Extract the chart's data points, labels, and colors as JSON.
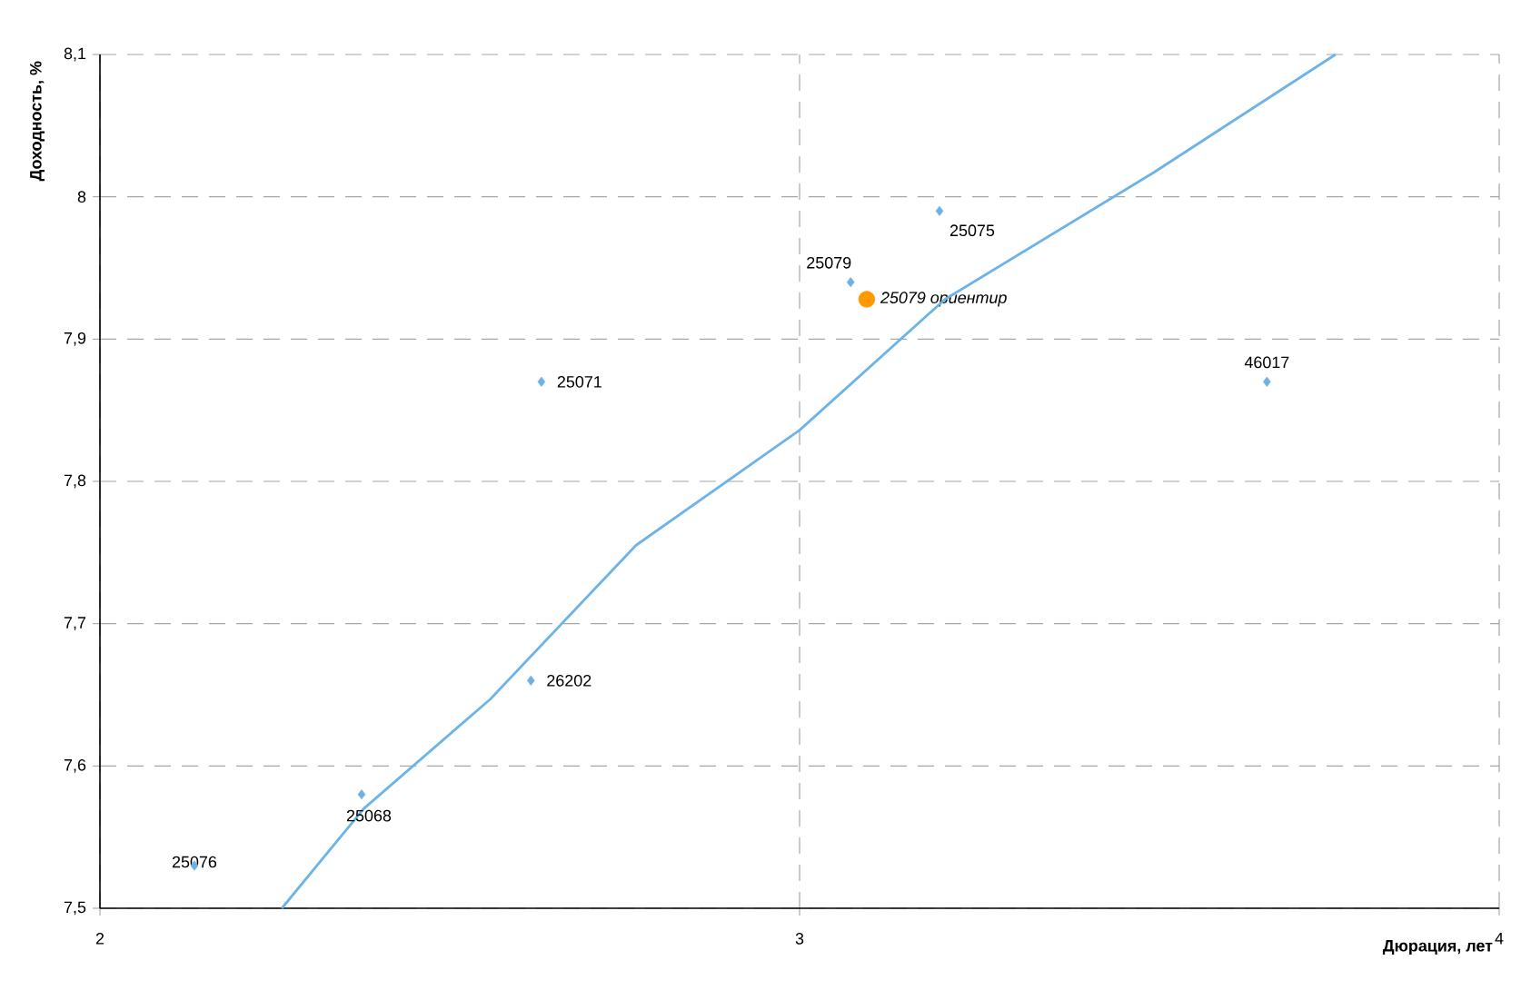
{
  "chart_data": {
    "type": "scatter",
    "xlabel": "Дюрация, лет",
    "ylabel": "Доходность, %",
    "xlim": [
      2,
      4
    ],
    "ylim": [
      7.5,
      8.1
    ],
    "xticks": [
      2,
      3,
      4
    ],
    "yticks": [
      {
        "value": 7.5,
        "label": "7,5"
      },
      {
        "value": 7.6,
        "label": "7,6"
      },
      {
        "value": 7.7,
        "label": "7,7"
      },
      {
        "value": 7.8,
        "label": "7,8"
      },
      {
        "value": 7.9,
        "label": "7,9"
      },
      {
        "value": 8.0,
        "label": "8"
      },
      {
        "value": 8.1,
        "label": "8,1"
      }
    ],
    "grid": true,
    "series": [
      {
        "marker": "diamond",
        "color": "#6fb1e4",
        "x": [
          2.135,
          2.374,
          2.616,
          2.631,
          3.073,
          3.2,
          3.668
        ],
        "values": [
          7.53,
          7.58,
          7.66,
          7.87,
          7.94,
          7.99,
          7.87
        ]
      },
      {
        "marker": "circle",
        "name": "25079 ориентир",
        "color": "#ff9900",
        "x": [
          3.096
        ],
        "values": [
          7.928
        ]
      },
      {
        "type": "line",
        "marker": "none",
        "color": "#6cb4e8",
        "x": [
          2.26,
          2.377,
          2.558,
          2.766,
          3.0,
          3.208,
          3.506,
          3.766
        ],
        "values": [
          7.5,
          7.57,
          7.647,
          7.755,
          7.836,
          7.928,
          8.017,
          8.1
        ]
      }
    ],
    "annotations": [
      {
        "text": "25076",
        "x": 2.135,
        "y": 7.53
      },
      {
        "text": "25068",
        "x": 2.374,
        "y": 7.58
      },
      {
        "text": "26202",
        "x": 2.616,
        "y": 7.66
      },
      {
        "text": "25071",
        "x": 2.631,
        "y": 7.87
      },
      {
        "text": "25079",
        "x": 3.073,
        "y": 7.94
      },
      {
        "text": "25075",
        "x": 3.2,
        "y": 7.99
      },
      {
        "text": "46017",
        "x": 3.668,
        "y": 7.87
      }
    ]
  }
}
